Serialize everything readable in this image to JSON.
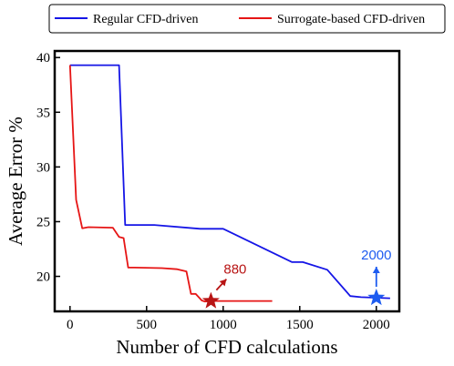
{
  "chart_data": {
    "type": "line",
    "xlabel": "Number of CFD calculations",
    "ylabel": "Average Error %",
    "xlim": [
      -100,
      2150
    ],
    "ylim": [
      16.8,
      40.6
    ],
    "xticks": [
      0,
      500,
      1000,
      1500,
      2000
    ],
    "yticks": [
      20,
      25,
      30,
      35,
      40
    ],
    "xtick_labels": [
      "0",
      "500",
      "1000",
      "1500",
      "2000"
    ],
    "ytick_labels": [
      "20",
      "25",
      "30",
      "35",
      "40"
    ],
    "grid": false,
    "legend_position": "top",
    "series": [
      {
        "name": "Regular CFD-driven",
        "color": "#1515e6",
        "x": [
          0,
          320,
          360,
          550,
          850,
          1000,
          1450,
          1520,
          1680,
          1830,
          1900,
          2000,
          2090
        ],
        "y": [
          39.3,
          39.3,
          24.7,
          24.7,
          24.35,
          24.35,
          21.3,
          21.3,
          20.6,
          18.2,
          18.1,
          18.05,
          18.0
        ]
      },
      {
        "name": "Surrogate-based CFD-driven",
        "color": "#e61515",
        "x": [
          0,
          40,
          80,
          120,
          280,
          320,
          350,
          380,
          420,
          600,
          700,
          760,
          790,
          820,
          860,
          880,
          920,
          1000,
          1320
        ],
        "y": [
          39.3,
          27.0,
          24.4,
          24.5,
          24.45,
          23.6,
          23.5,
          20.8,
          20.8,
          20.75,
          20.65,
          20.45,
          18.4,
          18.4,
          17.8,
          17.7,
          17.75,
          17.75,
          17.75
        ]
      }
    ],
    "annotations": [
      {
        "label": "880",
        "x": 920,
        "y": 17.75,
        "color": "#b81414",
        "marker": "star",
        "arrow": "up-right"
      },
      {
        "label": "2000",
        "x": 2000,
        "y": 18.05,
        "color": "#1e5cf0",
        "marker": "star",
        "arrow": "up"
      }
    ]
  }
}
